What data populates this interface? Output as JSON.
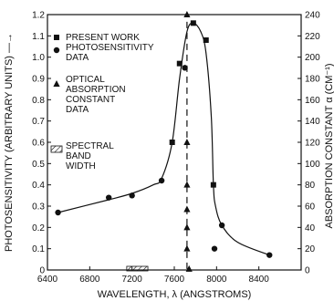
{
  "chart_data": {
    "type": "scatter",
    "title": "",
    "xlabel": "WAVELENGTH, λ (ANGSTROMS)",
    "ylabel_left": "PHOTOSENSITIVITY (ARBITRARY UNITS) —→",
    "ylabel_right": "ABSORPTION CONSTANT α (CM⁻¹)",
    "xlim": [
      6400,
      8800
    ],
    "ylim_left": [
      0,
      1.2
    ],
    "ylim_right": [
      0,
      240
    ],
    "x_ticks": [
      "6400",
      "6800",
      "7200",
      "7600",
      "8000",
      "8400"
    ],
    "y_ticks_left": [
      "0",
      "0.1",
      "0.2",
      "0.3",
      "0.4",
      "0.5",
      "0.6",
      "0.7",
      "0.8",
      "0.9",
      "1.0",
      "1.1",
      "1.2"
    ],
    "y_ticks_right": [
      "0",
      "20",
      "40",
      "60",
      "80",
      "100",
      "120",
      "140",
      "160",
      "180",
      "200",
      "220",
      "240"
    ],
    "grid": false,
    "legend": [
      {
        "label": "PRESENT WORK PHOTOSENSITIVITY DATA",
        "markers": [
          "square",
          "circle"
        ]
      },
      {
        "label": "OPTICAL ABSORPTION CONSTANT DATA",
        "markers": [
          "triangle"
        ]
      },
      {
        "label": "SPECTRAL BAND WIDTH",
        "markers": [
          "hatched-box"
        ]
      }
    ],
    "spectral_band_width": [
      7150,
      7350
    ],
    "series": [
      {
        "axis": "left",
        "marker": "square",
        "points": [
          [
            7580,
            0.6
          ],
          [
            7650,
            0.97
          ],
          [
            7780,
            1.16
          ],
          [
            7900,
            1.08
          ],
          [
            7970,
            0.4
          ]
        ]
      },
      {
        "axis": "left",
        "marker": "circle",
        "points": [
          [
            6500,
            0.27
          ],
          [
            6980,
            0.34
          ],
          [
            7200,
            0.35
          ],
          [
            7480,
            0.42
          ],
          [
            7700,
            0.95
          ],
          [
            7980,
            0.1
          ],
          [
            8050,
            0.21
          ],
          [
            8500,
            0.07
          ]
        ]
      },
      {
        "axis": "right",
        "marker": "triangle",
        "points": [
          [
            7720,
            240
          ],
          [
            7720,
            120
          ],
          [
            7720,
            80
          ],
          [
            7720,
            57
          ],
          [
            7720,
            40
          ],
          [
            7720,
            20
          ],
          [
            7740,
            1
          ]
        ]
      },
      {
        "axis": "left",
        "marker": "none",
        "style": "solid",
        "points": [
          [
            6500,
            0.27
          ],
          [
            6980,
            0.33
          ],
          [
            7200,
            0.36
          ],
          [
            7400,
            0.4
          ],
          [
            7480,
            0.43
          ],
          [
            7580,
            0.6
          ],
          [
            7650,
            0.9
          ],
          [
            7720,
            1.12
          ],
          [
            7780,
            1.16
          ],
          [
            7850,
            1.12
          ],
          [
            7900,
            1.02
          ],
          [
            7950,
            0.72
          ],
          [
            7970,
            0.4
          ],
          [
            7990,
            0.3
          ],
          [
            8050,
            0.21
          ],
          [
            8200,
            0.13
          ],
          [
            8500,
            0.07
          ]
        ]
      },
      {
        "axis": "right",
        "marker": "none",
        "style": "dashed",
        "points": [
          [
            7720,
            1
          ],
          [
            7720,
            240
          ]
        ]
      }
    ]
  }
}
